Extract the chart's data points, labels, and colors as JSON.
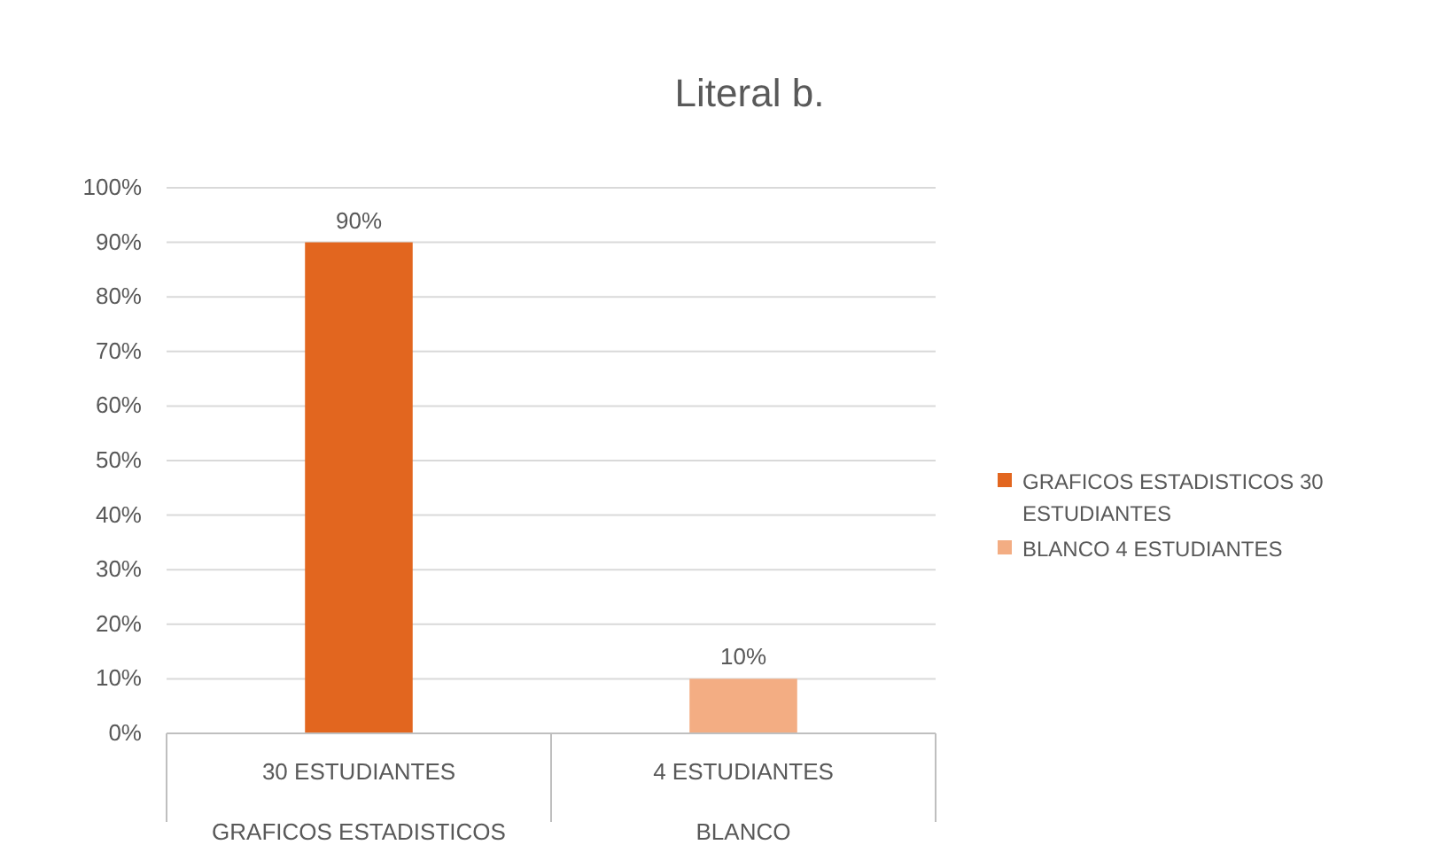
{
  "chart_data": {
    "type": "bar",
    "title": "Literal b.",
    "categories": [
      "30 ESTUDIANTES\nGRAFICOS ESTADISTICOS",
      "4 ESTUDIANTES\nBLANCO"
    ],
    "stacked": true,
    "series": [
      {
        "name": "GRAFICOS ESTADISTICOS 30 ESTUDIANTES",
        "color": "#e2661f",
        "values": [
          90,
          null
        ],
        "value_labels": [
          "90%",
          null
        ]
      },
      {
        "name": "BLANCO 4 ESTUDIANTES",
        "color": "#f3ad83",
        "values": [
          null,
          10
        ],
        "value_labels": [
          null,
          "10%"
        ]
      }
    ],
    "ylim": [
      0,
      100
    ],
    "yticks": [
      {
        "value": 0,
        "label": "0%"
      },
      {
        "value": 10,
        "label": "10%"
      },
      {
        "value": 20,
        "label": "20%"
      },
      {
        "value": 30,
        "label": "30%"
      },
      {
        "value": 40,
        "label": "40%"
      },
      {
        "value": 50,
        "label": "50%"
      },
      {
        "value": 60,
        "label": "60%"
      },
      {
        "value": 70,
        "label": "70%"
      },
      {
        "value": 80,
        "label": "80%"
      },
      {
        "value": 90,
        "label": "90%"
      },
      {
        "value": 100,
        "label": "100%"
      }
    ],
    "grid": "y",
    "legend": "right"
  }
}
